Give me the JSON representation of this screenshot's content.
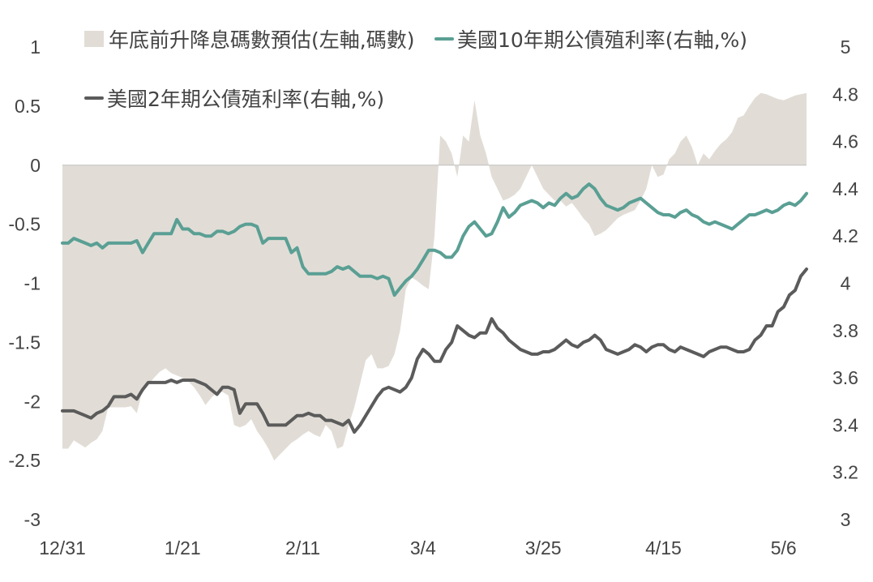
{
  "chart_data": {
    "type": "area+line",
    "categories": [
      "12/31",
      "1/21",
      "2/11",
      "3/4",
      "3/25",
      "4/15",
      "5/6"
    ],
    "legend": [
      {
        "name": "年底前升降息碼數預估(左軸,碼數)",
        "kind": "area",
        "color": "#e1ddd6"
      },
      {
        "name": "美國10年期公債殖利率(右軸,%)",
        "kind": "line",
        "color": "#5a9f94"
      },
      {
        "name": "美國2年期公債殖利率(右軸,%)",
        "kind": "line",
        "color": "#5b5b5b"
      }
    ],
    "left_axis": {
      "ylim": [
        -3,
        1
      ],
      "ticks": [
        "1",
        "0.5",
        "0",
        "-0.5",
        "-1",
        "-1.5",
        "-2",
        "-2.5",
        "-3"
      ]
    },
    "right_axis": {
      "ylim": [
        3,
        5
      ],
      "ticks": [
        "5",
        "4.8",
        "4.6",
        "4.4",
        "4.2",
        "4",
        "3.8",
        "3.6",
        "3.4",
        "3.2",
        "3"
      ]
    },
    "series": [
      {
        "name": "年底前升降息碼數預估(左軸,碼數)",
        "axis": "left",
        "x": [
          0,
          1,
          2,
          3,
          4,
          5,
          6,
          7,
          8,
          9,
          10,
          11,
          12,
          13,
          14,
          15,
          16,
          17,
          18,
          19,
          20,
          21,
          22,
          23,
          24,
          25,
          26,
          27,
          28,
          29,
          30,
          31,
          32,
          33,
          34,
          35,
          36,
          37,
          38,
          39,
          40,
          41,
          42,
          43,
          44,
          45,
          46,
          47,
          48,
          49,
          50,
          51,
          52,
          53,
          54,
          55,
          56,
          57,
          58,
          59,
          60,
          61,
          62,
          63,
          64,
          65,
          66,
          67,
          68,
          69,
          70,
          71,
          72,
          73,
          74,
          75,
          76,
          77,
          78,
          79,
          80,
          81,
          82,
          83,
          84,
          85,
          86,
          87,
          88,
          89,
          90,
          91,
          92,
          93,
          94,
          95,
          96,
          97,
          98,
          99,
          100,
          101,
          102,
          103,
          104,
          105,
          106,
          107,
          108,
          109,
          110,
          111,
          112,
          113,
          114,
          115,
          116,
          117,
          118,
          119,
          120,
          121,
          122,
          123,
          124,
          125,
          126,
          127,
          128,
          129,
          130
        ],
        "values": [
          -2.4,
          -2.4,
          -2.33,
          -2.36,
          -2.39,
          -2.35,
          -2.32,
          -2.25,
          -2.05,
          -2.05,
          -2.05,
          -2.05,
          -2.04,
          -2.1,
          -1.9,
          -1.86,
          -1.8,
          -1.75,
          -1.72,
          -1.76,
          -1.78,
          -1.8,
          -1.83,
          -1.88,
          -1.95,
          -2.03,
          -1.97,
          -1.92,
          -1.92,
          -1.95,
          -2.2,
          -2.22,
          -2.2,
          -2.15,
          -2.25,
          -2.32,
          -2.4,
          -2.5,
          -2.45,
          -2.4,
          -2.35,
          -2.32,
          -2.28,
          -2.25,
          -2.28,
          -2.3,
          -2.2,
          -2.25,
          -2.4,
          -2.38,
          -2.2,
          -2.05,
          -1.85,
          -1.65,
          -1.6,
          -1.72,
          -1.72,
          -1.7,
          -1.6,
          -1.4,
          -1.05,
          -0.95,
          -0.98,
          -1.02,
          -1.05,
          -0.6,
          0.25,
          0.2,
          0.1,
          -0.1,
          0.25,
          0.2,
          0.55,
          0.25,
          0.1,
          -0.1,
          -0.2,
          -0.3,
          -0.28,
          -0.25,
          -0.2,
          -0.1,
          0.0,
          -0.1,
          -0.2,
          -0.25,
          -0.3,
          -0.3,
          -0.35,
          -0.32,
          -0.38,
          -0.45,
          -0.5,
          -0.6,
          -0.58,
          -0.55,
          -0.5,
          -0.45,
          -0.42,
          -0.4,
          -0.38,
          -0.3,
          -0.2,
          0.0,
          -0.1,
          -0.08,
          0.05,
          0.1,
          0.2,
          0.25,
          0.15,
          0.0,
          0.1,
          0.05,
          0.12,
          0.18,
          0.22,
          0.28,
          0.4,
          0.42,
          0.5,
          0.57,
          0.61,
          0.6,
          0.58,
          0.56,
          0.55,
          0.57,
          0.59,
          0.6,
          0.61
        ],
        "color": "#e1ddd6"
      },
      {
        "name": "美國10年期公債殖利率(右軸,%)",
        "axis": "right",
        "x": [
          0,
          1,
          2,
          3,
          4,
          5,
          6,
          7,
          8,
          9,
          10,
          11,
          12,
          13,
          14,
          15,
          16,
          17,
          18,
          19,
          20,
          21,
          22,
          23,
          24,
          25,
          26,
          27,
          28,
          29,
          30,
          31,
          32,
          33,
          34,
          35,
          36,
          37,
          38,
          39,
          40,
          41,
          42,
          43,
          44,
          45,
          46,
          47,
          48,
          49,
          50,
          51,
          52,
          53,
          54,
          55,
          56,
          57,
          58,
          59,
          60,
          61,
          62,
          63,
          64,
          65,
          66,
          67,
          68,
          69,
          70,
          71,
          72,
          73,
          74,
          75,
          76,
          77,
          78,
          79,
          80,
          81,
          82,
          83,
          84,
          85,
          86,
          87,
          88,
          89,
          90,
          91,
          92,
          93,
          94,
          95,
          96,
          97,
          98,
          99,
          100,
          101,
          102,
          103,
          104,
          105,
          106,
          107,
          108,
          109,
          110,
          111,
          112,
          113,
          114,
          115,
          116,
          117,
          118,
          119,
          120,
          121,
          122,
          123,
          124,
          125,
          126,
          127,
          128,
          129,
          130
        ],
        "values": [
          4.17,
          4.17,
          4.19,
          4.18,
          4.17,
          4.16,
          4.17,
          4.15,
          4.17,
          4.17,
          4.17,
          4.17,
          4.17,
          4.18,
          4.13,
          4.17,
          4.21,
          4.21,
          4.21,
          4.21,
          4.27,
          4.23,
          4.23,
          4.21,
          4.21,
          4.2,
          4.2,
          4.22,
          4.22,
          4.21,
          4.22,
          4.24,
          4.25,
          4.25,
          4.24,
          4.17,
          4.19,
          4.19,
          4.19,
          4.19,
          4.13,
          4.15,
          4.07,
          4.04,
          4.04,
          4.04,
          4.04,
          4.05,
          4.07,
          4.06,
          4.07,
          4.05,
          4.03,
          4.03,
          4.03,
          4.02,
          4.03,
          4.02,
          3.95,
          3.98,
          4.01,
          4.03,
          4.06,
          4.1,
          4.14,
          4.14,
          4.13,
          4.11,
          4.11,
          4.14,
          4.2,
          4.24,
          4.26,
          4.23,
          4.2,
          4.21,
          4.26,
          4.32,
          4.28,
          4.3,
          4.33,
          4.34,
          4.35,
          4.34,
          4.32,
          4.34,
          4.33,
          4.36,
          4.38,
          4.36,
          4.37,
          4.4,
          4.42,
          4.4,
          4.36,
          4.33,
          4.32,
          4.31,
          4.32,
          4.34,
          4.35,
          4.36,
          4.34,
          4.32,
          4.3,
          4.29,
          4.29,
          4.28,
          4.3,
          4.31,
          4.29,
          4.28,
          4.26,
          4.25,
          4.26,
          4.25,
          4.24,
          4.23,
          4.25,
          4.27,
          4.29,
          4.29,
          4.3,
          4.31,
          4.3,
          4.31,
          4.33,
          4.34,
          4.33,
          4.35,
          4.38
        ],
        "color": "#5a9f94"
      },
      {
        "name": "美國2年期公債殖利率(右軸,%)",
        "axis": "right",
        "x": [
          0,
          1,
          2,
          3,
          4,
          5,
          6,
          7,
          8,
          9,
          10,
          11,
          12,
          13,
          14,
          15,
          16,
          17,
          18,
          19,
          20,
          21,
          22,
          23,
          24,
          25,
          26,
          27,
          28,
          29,
          30,
          31,
          32,
          33,
          34,
          35,
          36,
          37,
          38,
          39,
          40,
          41,
          42,
          43,
          44,
          45,
          46,
          47,
          48,
          49,
          50,
          51,
          52,
          53,
          54,
          55,
          56,
          57,
          58,
          59,
          60,
          61,
          62,
          63,
          64,
          65,
          66,
          67,
          68,
          69,
          70,
          71,
          72,
          73,
          74,
          75,
          76,
          77,
          78,
          79,
          80,
          81,
          82,
          83,
          84,
          85,
          86,
          87,
          88,
          89,
          90,
          91,
          92,
          93,
          94,
          95,
          96,
          97,
          98,
          99,
          100,
          101,
          102,
          103,
          104,
          105,
          106,
          107,
          108,
          109,
          110,
          111,
          112,
          113,
          114,
          115,
          116,
          117,
          118,
          119,
          120,
          121,
          122,
          123,
          124,
          125,
          126,
          127,
          128,
          129,
          130
        ],
        "values": [
          3.46,
          3.46,
          3.46,
          3.45,
          3.44,
          3.43,
          3.45,
          3.46,
          3.48,
          3.52,
          3.52,
          3.52,
          3.53,
          3.51,
          3.55,
          3.58,
          3.58,
          3.58,
          3.58,
          3.59,
          3.58,
          3.59,
          3.59,
          3.59,
          3.58,
          3.57,
          3.55,
          3.53,
          3.56,
          3.56,
          3.55,
          3.45,
          3.49,
          3.49,
          3.49,
          3.45,
          3.4,
          3.4,
          3.4,
          3.4,
          3.42,
          3.44,
          3.44,
          3.45,
          3.44,
          3.44,
          3.42,
          3.42,
          3.41,
          3.4,
          3.42,
          3.37,
          3.4,
          3.44,
          3.48,
          3.52,
          3.55,
          3.56,
          3.55,
          3.54,
          3.56,
          3.6,
          3.68,
          3.72,
          3.7,
          3.67,
          3.67,
          3.72,
          3.75,
          3.82,
          3.8,
          3.78,
          3.77,
          3.79,
          3.79,
          3.85,
          3.81,
          3.79,
          3.76,
          3.74,
          3.72,
          3.71,
          3.7,
          3.7,
          3.71,
          3.71,
          3.72,
          3.74,
          3.76,
          3.74,
          3.73,
          3.75,
          3.76,
          3.78,
          3.76,
          3.72,
          3.71,
          3.7,
          3.71,
          3.72,
          3.74,
          3.73,
          3.71,
          3.73,
          3.74,
          3.74,
          3.72,
          3.71,
          3.73,
          3.72,
          3.71,
          3.7,
          3.69,
          3.71,
          3.72,
          3.73,
          3.73,
          3.72,
          3.71,
          3.71,
          3.72,
          3.76,
          3.78,
          3.82,
          3.82,
          3.88,
          3.9,
          3.95,
          3.97,
          4.03,
          4.06
        ],
        "color": "#5b5b5b"
      }
    ],
    "grid": false,
    "legend_placement": "top"
  }
}
